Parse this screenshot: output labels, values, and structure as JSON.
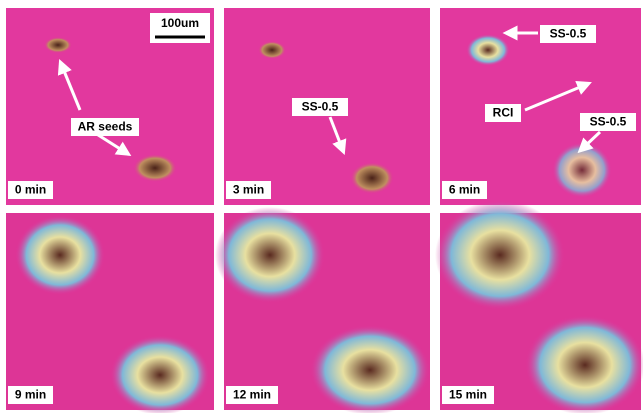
{
  "scale_bar": "100um",
  "panels": [
    {
      "time": "0 min",
      "labels": [
        "AR seeds"
      ]
    },
    {
      "time": "3 min",
      "labels": [
        "SS-0.5"
      ]
    },
    {
      "time": "6 min",
      "labels": [
        "SS-0.5",
        "RCI",
        "SS-0.5"
      ]
    },
    {
      "time": "9 min",
      "labels": []
    },
    {
      "time": "12 min",
      "labels": []
    },
    {
      "time": "15 min",
      "labels": []
    }
  ]
}
